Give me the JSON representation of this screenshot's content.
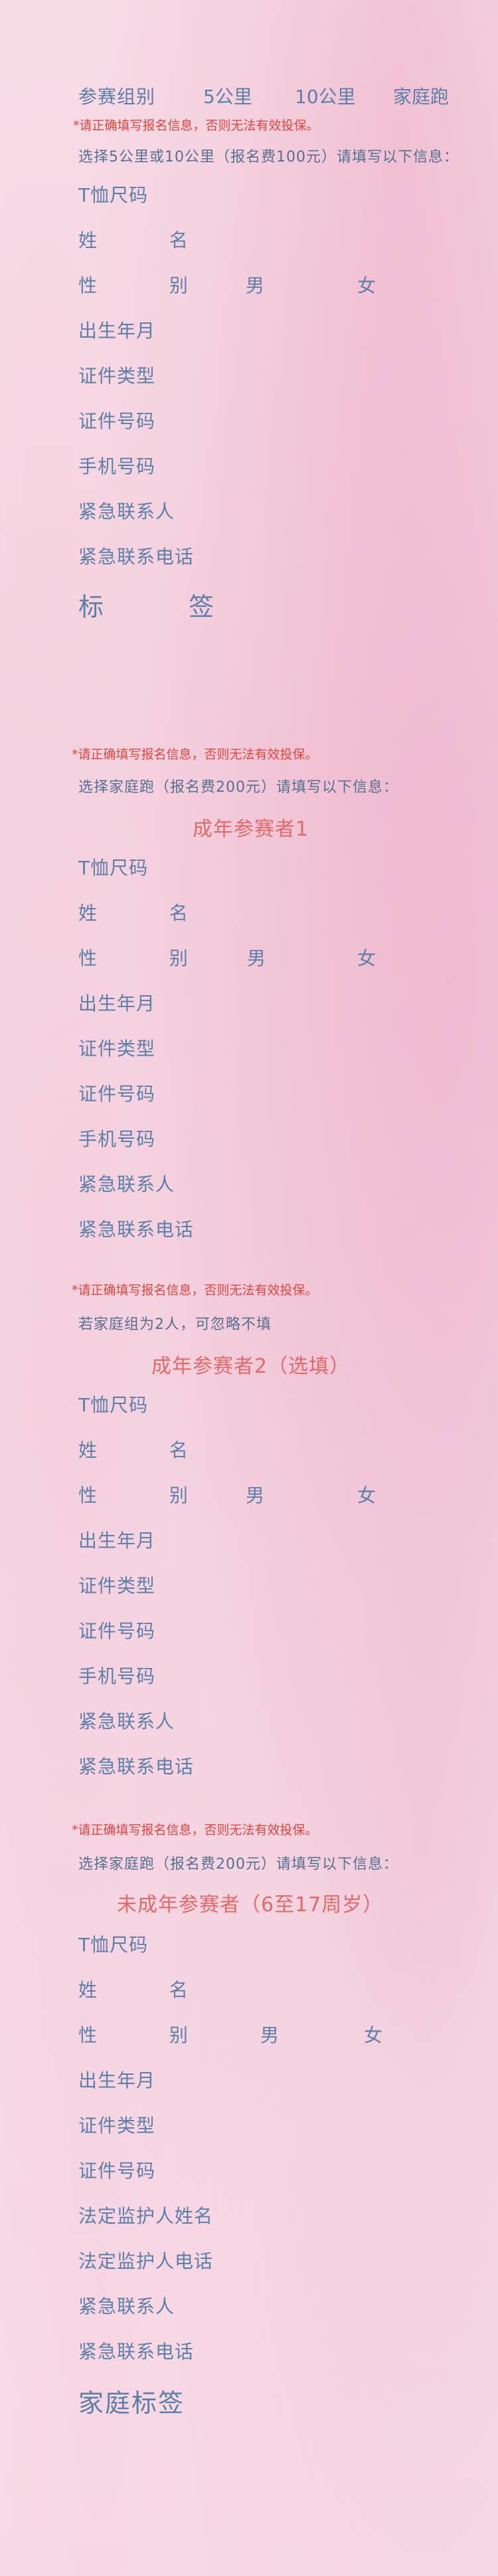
{
  "group_select": {
    "label": "参赛组别",
    "options": [
      "5公里",
      "10公里",
      "家庭跑"
    ]
  },
  "notice": "*请正确填写报名信息，否则无法有效投保。",
  "section1": {
    "instruction": "选择5公里或10公里（报名费100元）请填写以下信息：",
    "fields": {
      "tshirt": "T恤尺码",
      "name": "姓  名",
      "gender": "性  别",
      "male": "男",
      "female": "女",
      "birth": "出生年月",
      "id_type": "证件类型",
      "id_number": "证件号码",
      "phone": "手机号码",
      "emergency_contact": "紧急联系人",
      "emergency_phone": "紧急联系电话"
    },
    "tag_label": "标  签"
  },
  "section2": {
    "instruction": "选择家庭跑（报名费200元）请填写以下信息：",
    "heading": "成年参赛者1",
    "fields": {
      "tshirt": "T恤尺码",
      "name": "姓  名",
      "gender": "性  别",
      "male": "男",
      "female": "女",
      "birth": "出生年月",
      "id_type": "证件类型",
      "id_number": "证件号码",
      "phone": "手机号码",
      "emergency_contact": "紧急联系人",
      "emergency_phone": "紧急联系电话"
    }
  },
  "section3": {
    "instruction": "若家庭组为2人，可忽略不填",
    "heading": "成年参赛者2（选填）",
    "fields": {
      "tshirt": "T恤尺码",
      "name": "姓  名",
      "gender": "性  别",
      "male": "男",
      "female": "女",
      "birth": "出生年月",
      "id_type": "证件类型",
      "id_number": "证件号码",
      "phone": "手机号码",
      "emergency_contact": "紧急联系人",
      "emergency_phone": "紧急联系电话"
    }
  },
  "section4": {
    "instruction": "选择家庭跑（报名费200元）请填写以下信息：",
    "heading": "未成年参赛者（6至17周岁）",
    "fields": {
      "tshirt": "T恤尺码",
      "name": "姓  名",
      "gender": "性  别",
      "male": "男",
      "female": "女",
      "birth": "出生年月",
      "id_type": "证件类型",
      "id_number": "证件号码",
      "guardian_name": "法定监护人姓名",
      "guardian_phone": "法定监护人电话",
      "emergency_contact": "紧急联系人",
      "emergency_phone": "紧急联系电话"
    },
    "tag_label": "家庭标签"
  },
  "colors": {
    "label": "#5e7fa8",
    "notice": "#e0463d",
    "heading": "#e06a6a"
  }
}
